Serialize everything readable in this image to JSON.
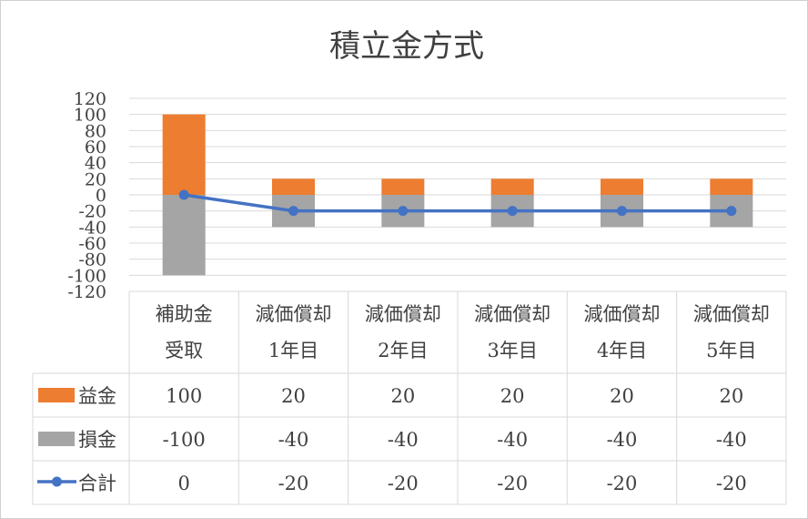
{
  "chart_data": {
    "type": "bar",
    "title": "積立金方式",
    "categories": [
      [
        "補助金",
        "受取"
      ],
      [
        "減価償却",
        "1年目"
      ],
      [
        "減価償却",
        "2年目"
      ],
      [
        "減価償却",
        "3年目"
      ],
      [
        "減価償却",
        "4年目"
      ],
      [
        "減価償却",
        "5年目"
      ]
    ],
    "stacked": true,
    "ylim": [
      -120,
      120
    ],
    "yticks": [
      -120,
      -100,
      -80,
      -60,
      -40,
      -20,
      0,
      20,
      40,
      60,
      80,
      100,
      120
    ],
    "grid": true,
    "legend_placement": "data-table",
    "series": [
      {
        "name": "益金",
        "kind": "bar",
        "color": "#ed7d31",
        "values": [
          100,
          20,
          20,
          20,
          20,
          20
        ]
      },
      {
        "name": "損金",
        "kind": "bar",
        "color": "#a5a5a5",
        "values": [
          -100,
          -40,
          -40,
          -40,
          -40,
          -40
        ]
      },
      {
        "name": "合計",
        "kind": "line",
        "color": "#4472c4",
        "values": [
          0,
          -20,
          -20,
          -20,
          -20,
          -20
        ]
      }
    ]
  }
}
